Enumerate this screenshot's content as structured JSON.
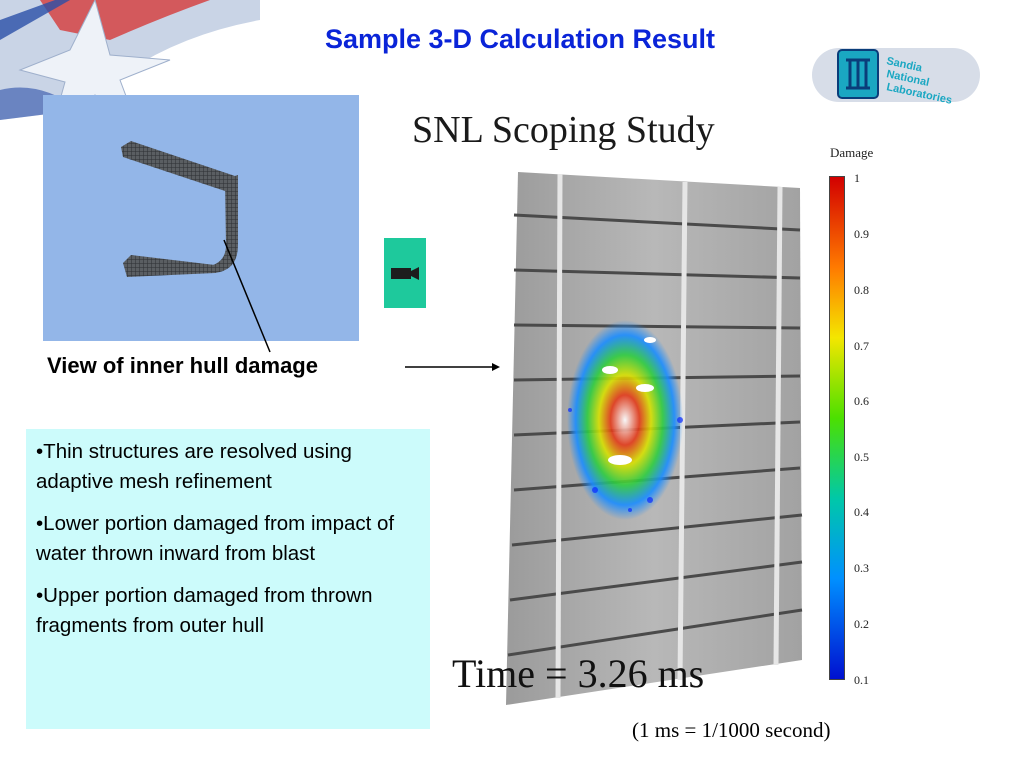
{
  "title": "Sample 3-D Calculation Result",
  "logo": {
    "text": "Sandia National Laboratories",
    "mark": "snl-thunderbird-logo"
  },
  "hull_view": {
    "label": "View of inner hull damage",
    "background": "#93b6e8"
  },
  "camera": {
    "icon": "video-camera-icon",
    "color": "#1ec99c"
  },
  "bullets": [
    "•Thin structures are resolved using adaptive mesh refinement",
    "•Lower portion damaged from impact of water thrown inward from blast",
    "•Upper portion damaged from thrown fragments from outer hull"
  ],
  "study": {
    "title": "SNL Scoping Study",
    "time": "Time = 3.26 ms",
    "note": "(1 ms = 1/1000 second)"
  },
  "legend": {
    "title": "Damage",
    "ticks": [
      "1",
      "0.9",
      "0.8",
      "0.7",
      "0.6",
      "0.5",
      "0.4",
      "0.3",
      "0.2",
      "0.1"
    ]
  },
  "colors": {
    "title": "#0a24d8",
    "bullet_box": "#ccfbfb"
  }
}
